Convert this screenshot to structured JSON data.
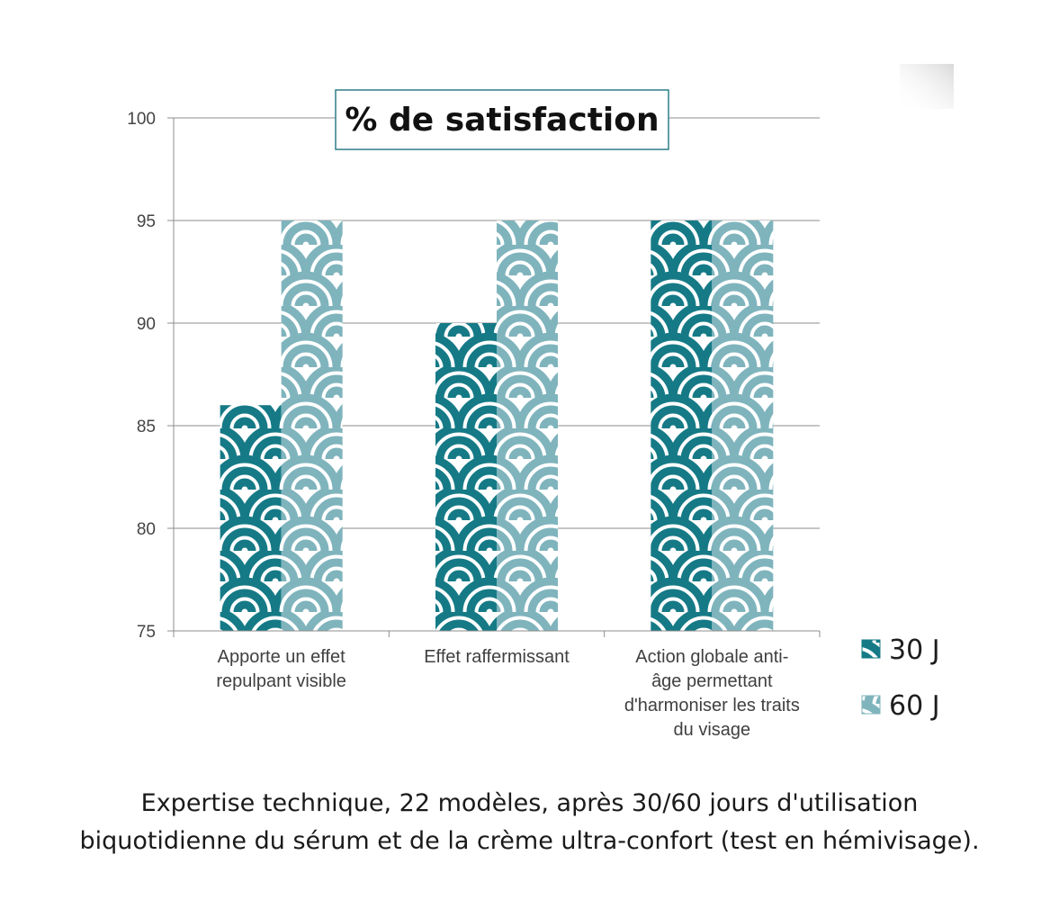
{
  "chart_data": {
    "type": "bar",
    "title": "% de satisfaction",
    "categories": [
      [
        "Apporte un effet",
        "repulpant visible"
      ],
      [
        "Effet raffermissant"
      ],
      [
        "Action globale anti-",
        "âge permettant",
        "d'harmoniser les traits",
        "du visage"
      ]
    ],
    "series": [
      {
        "name": "30 J",
        "values": [
          86,
          90,
          95
        ],
        "color": "#157a86"
      },
      {
        "name": "60 J",
        "values": [
          95,
          95,
          95
        ],
        "color": "#7fb4bd"
      }
    ],
    "ylim": [
      75,
      100
    ],
    "yticks": [
      75,
      80,
      85,
      90,
      95,
      100
    ],
    "grid": true,
    "legend": "right",
    "xlabel": "",
    "ylabel": ""
  },
  "caption": {
    "line1": "Expertise technique, 22 modèles, après 30/60 jours d'utilisation",
    "line2": "biquotidienne du sérum et de la crème ultra-confort (test en hémivisage)."
  }
}
